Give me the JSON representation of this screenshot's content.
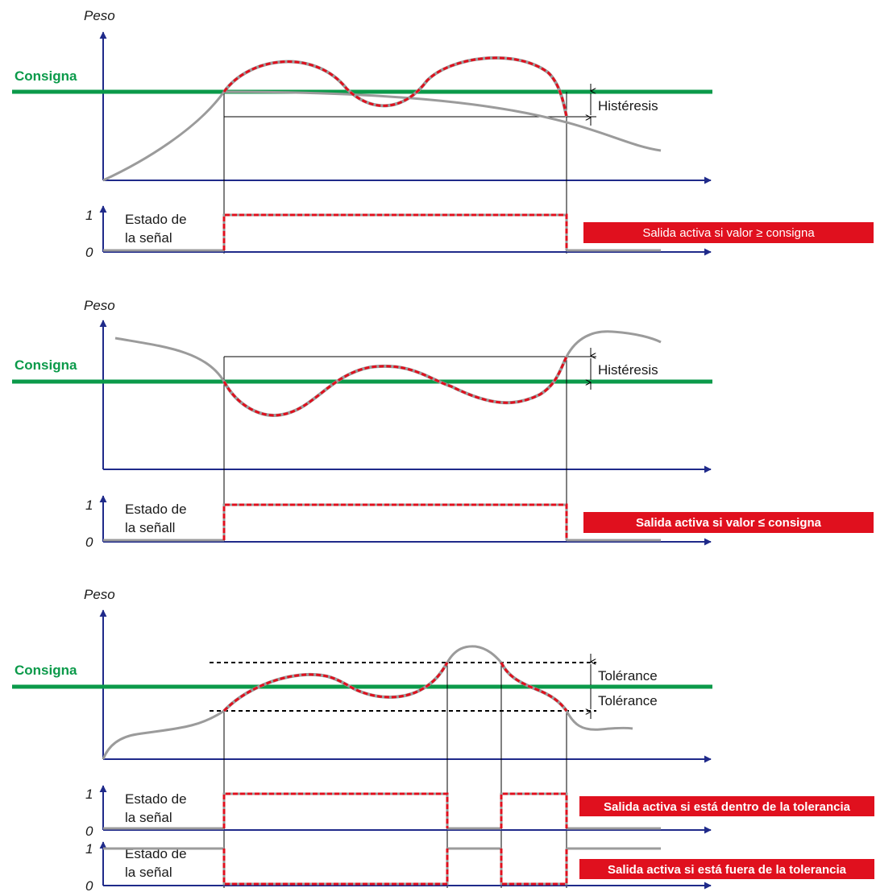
{
  "colors": {
    "setpoint": "#0b9a4a",
    "axis": "#1f2a8a",
    "curve": "#9b9b9b",
    "active": "#e0101e",
    "badge_bg": "#e0101e"
  },
  "panels": [
    {
      "y_axis_label": "Peso",
      "setpoint_label": "Consigna",
      "band_labels": [
        "Histéresis"
      ],
      "signal_label_lines": [
        "Estado de",
        "la señal"
      ],
      "signal_level_high": "1",
      "signal_level_low": "0",
      "output_badge": "Salida activa si valor ≥ consigna"
    },
    {
      "y_axis_label": "Peso",
      "setpoint_label": "Consigna",
      "band_labels": [
        "Histéresis"
      ],
      "signal_label_lines": [
        "Estado de",
        "la señall"
      ],
      "signal_level_high": "1",
      "signal_level_low": "0",
      "output_badge": "Salida activa si valor ≤ consigna"
    },
    {
      "y_axis_label": "Peso",
      "setpoint_label": "Consigna",
      "band_labels": [
        "Tolérance",
        "Tolérance"
      ],
      "signals": [
        {
          "signal_label_lines": [
            "Estado de",
            "la señal"
          ],
          "signal_level_high": "1",
          "signal_level_low": "0",
          "output_badge": "Salida activa si está dentro de la tolerancia"
        },
        {
          "signal_label_lines": [
            "Estado de",
            "la señal"
          ],
          "signal_level_high": "1",
          "signal_level_low": "0",
          "output_badge": "Salida activa si está fuera de la tolerancia"
        }
      ]
    }
  ]
}
